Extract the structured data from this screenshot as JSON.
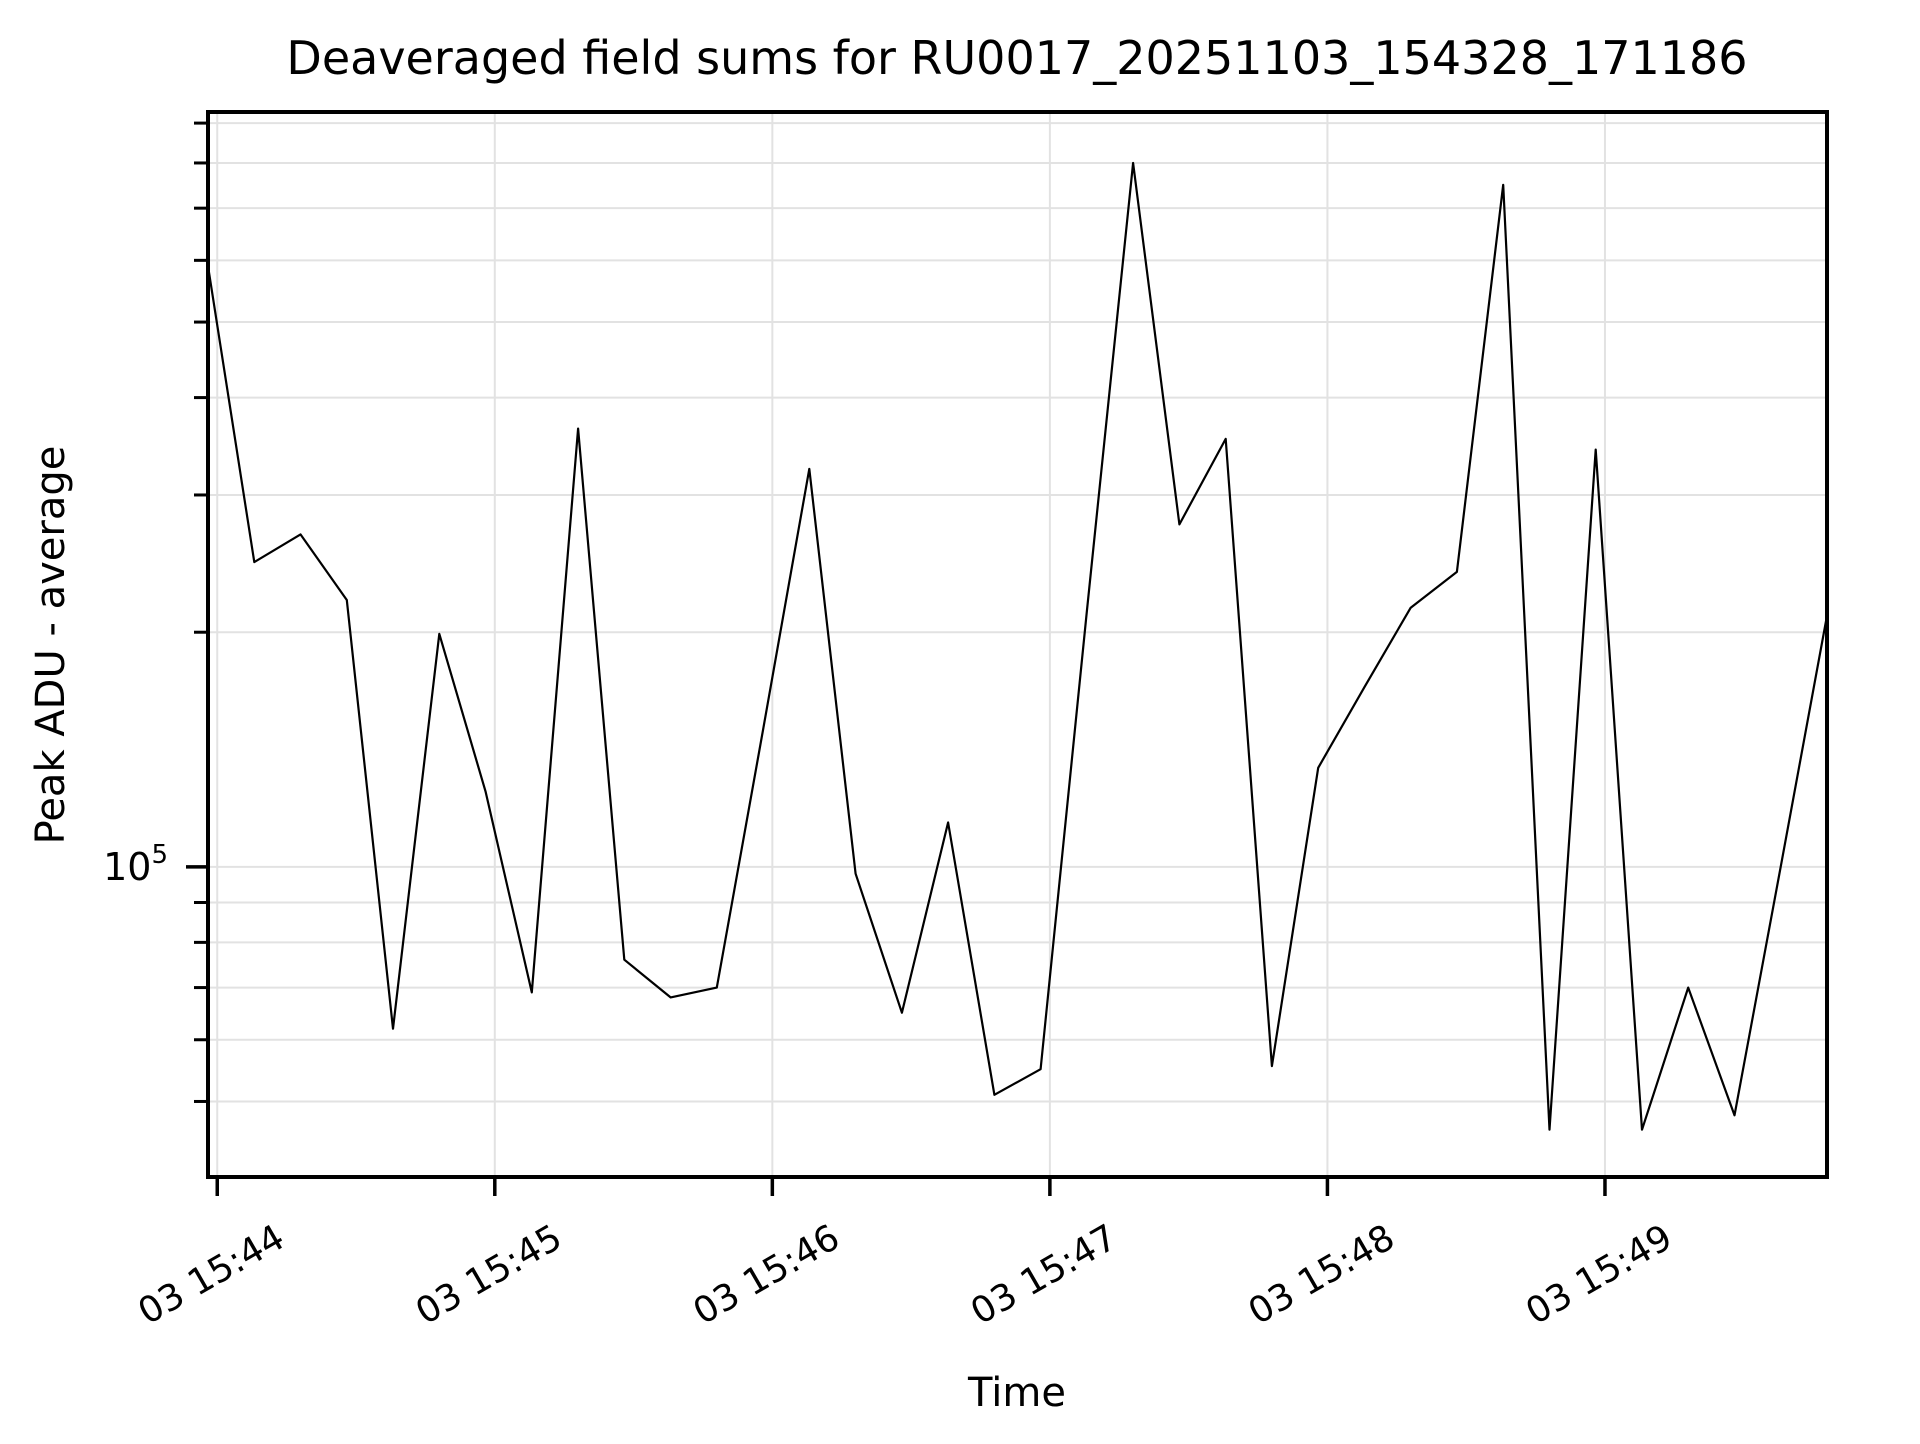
{
  "title": "Deaveraged field sums for RU0017_20251103_154328_171186",
  "axes": {
    "x_label": "Time",
    "y_label": "Peak ADU - average",
    "y_tick": {
      "base": "10",
      "exp": "5"
    }
  },
  "chart_data": {
    "type": "line",
    "title": "Deaveraged field sums for RU0017_20251103_154328_171186",
    "xlabel": "Time",
    "ylabel": "Peak ADU - average",
    "y_scale": "log10",
    "ylim": [
      40000,
      930000
    ],
    "x_unit": "seconds since 03 Nov 15:44:00",
    "xlim": [
      -2,
      348
    ],
    "grid": true,
    "legend": "none",
    "line_color": "#000000",
    "grid_color": "#e2e2e2",
    "x_ticks": [
      {
        "t": 0,
        "label": "03 15:44"
      },
      {
        "t": 60,
        "label": "03 15:45"
      },
      {
        "t": 120,
        "label": "03 15:46"
      },
      {
        "t": 180,
        "label": "03 15:47"
      },
      {
        "t": 240,
        "label": "03 15:48"
      },
      {
        "t": 300,
        "label": "03 15:49"
      }
    ],
    "y_major_ticks": [
      100000
    ],
    "y_minor_ticks": [
      50000,
      60000,
      70000,
      80000,
      90000,
      200000,
      300000,
      400000,
      500000,
      600000,
      700000,
      800000,
      900000
    ],
    "series": [
      {
        "name": "deaveraged field sums",
        "t": [
          -2,
          8,
          18,
          28,
          38,
          48,
          58,
          68,
          78,
          88,
          98,
          108,
          118,
          128,
          138,
          148,
          158,
          168,
          178,
          188,
          198,
          208,
          218,
          228,
          238,
          248,
          258,
          268,
          278,
          288,
          298,
          308,
          318,
          328,
          338,
          348
        ],
        "values": [
          590000,
          246000,
          267000,
          220000,
          62000,
          199000,
          125000,
          69000,
          365000,
          76000,
          68000,
          70000,
          150000,
          324000,
          98000,
          65000,
          114000,
          51000,
          55000,
          213000,
          800000,
          275000,
          354000,
          55500,
          134000,
          170000,
          215000,
          239000,
          750000,
          46000,
          343000,
          46000,
          70000,
          48000,
          100000,
          210000
        ]
      }
    ]
  }
}
